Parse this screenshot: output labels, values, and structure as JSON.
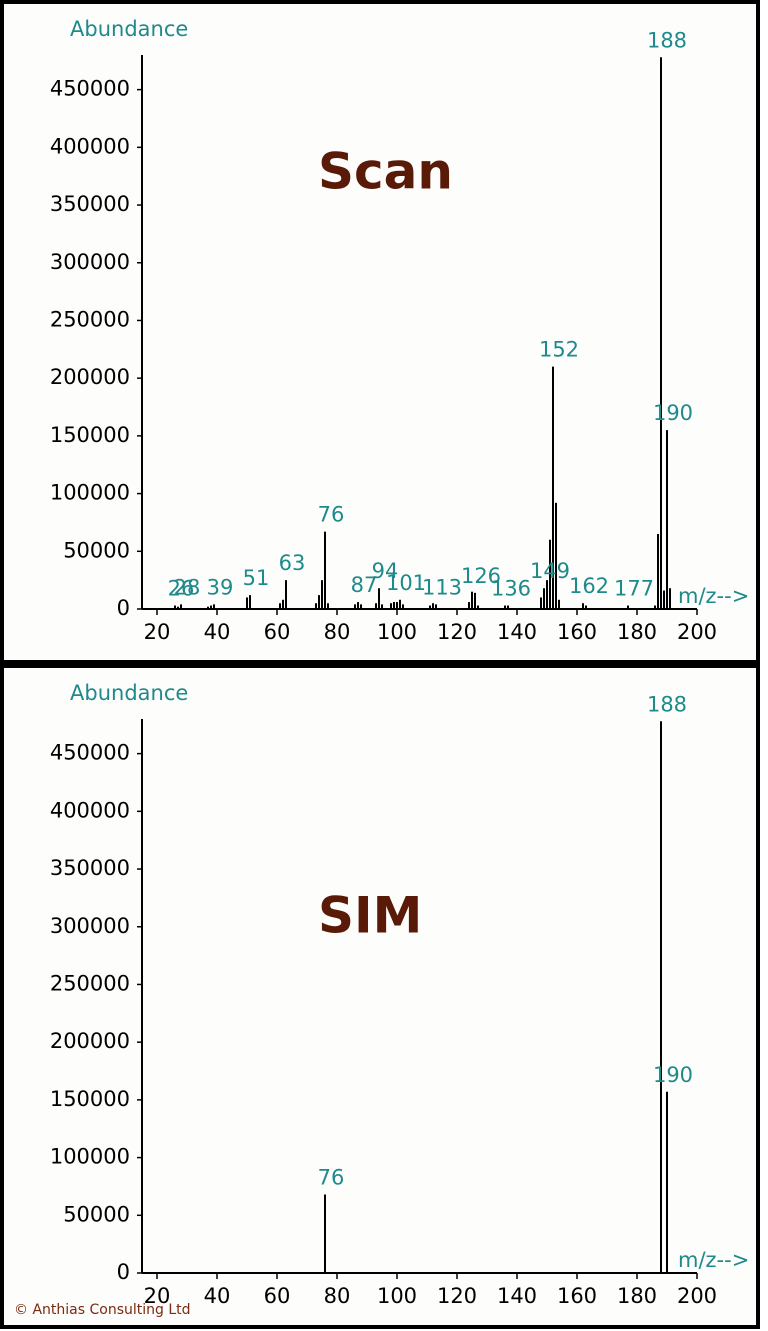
{
  "credit": "© Anthias Consulting Ltd",
  "chart_data": [
    {
      "type": "bar",
      "title": "Scan",
      "ylabel": "Abundance",
      "xlabel": "m/z-->",
      "x": [
        26,
        27,
        28,
        37,
        38,
        39,
        50,
        51,
        61,
        62,
        63,
        73,
        74,
        75,
        76,
        77,
        86,
        87,
        88,
        93,
        94,
        95,
        98,
        99,
        100,
        101,
        102,
        111,
        112,
        113,
        124,
        125,
        126,
        127,
        136,
        137,
        148,
        149,
        150,
        151,
        152,
        153,
        154,
        162,
        163,
        177,
        186,
        187,
        188,
        189,
        190,
        191
      ],
      "values": [
        3000,
        2000,
        4000,
        2000,
        3000,
        4000,
        10000,
        12000,
        5000,
        8000,
        25000,
        5000,
        12000,
        25000,
        67000,
        5000,
        4000,
        6000,
        4000,
        5000,
        18000,
        4000,
        5000,
        6000,
        6000,
        8000,
        4000,
        3000,
        5000,
        4000,
        6000,
        15000,
        14000,
        3000,
        3000,
        3000,
        10000,
        18000,
        25000,
        60000,
        210000,
        92000,
        8000,
        5000,
        3000,
        3000,
        3000,
        65000,
        478000,
        16000,
        155000,
        18000
      ],
      "peak_labels": [
        26,
        28,
        39,
        51,
        63,
        76,
        87,
        94,
        101,
        113,
        126,
        136,
        149,
        152,
        162,
        177,
        188,
        190
      ],
      "color": "#000000",
      "xlim": [
        15,
        200
      ],
      "xticks": [
        20,
        40,
        60,
        80,
        100,
        120,
        140,
        160,
        180,
        200
      ],
      "ylim": [
        0,
        480000
      ],
      "yticks": [
        0,
        50000,
        100000,
        150000,
        200000,
        250000,
        300000,
        350000,
        400000,
        450000
      ]
    },
    {
      "type": "bar",
      "title": "SIM",
      "ylabel": "Abundance",
      "xlabel": "m/z-->",
      "x": [
        76,
        188,
        190
      ],
      "values": [
        68000,
        478000,
        157000
      ],
      "peak_labels": [
        76,
        188,
        190
      ],
      "color": "#000000",
      "xlim": [
        15,
        200
      ],
      "xticks": [
        20,
        40,
        60,
        80,
        100,
        120,
        140,
        160,
        180,
        200
      ],
      "ylim": [
        0,
        480000
      ],
      "yticks": [
        0,
        50000,
        100000,
        150000,
        200000,
        250000,
        300000,
        350000,
        400000,
        450000
      ]
    }
  ]
}
